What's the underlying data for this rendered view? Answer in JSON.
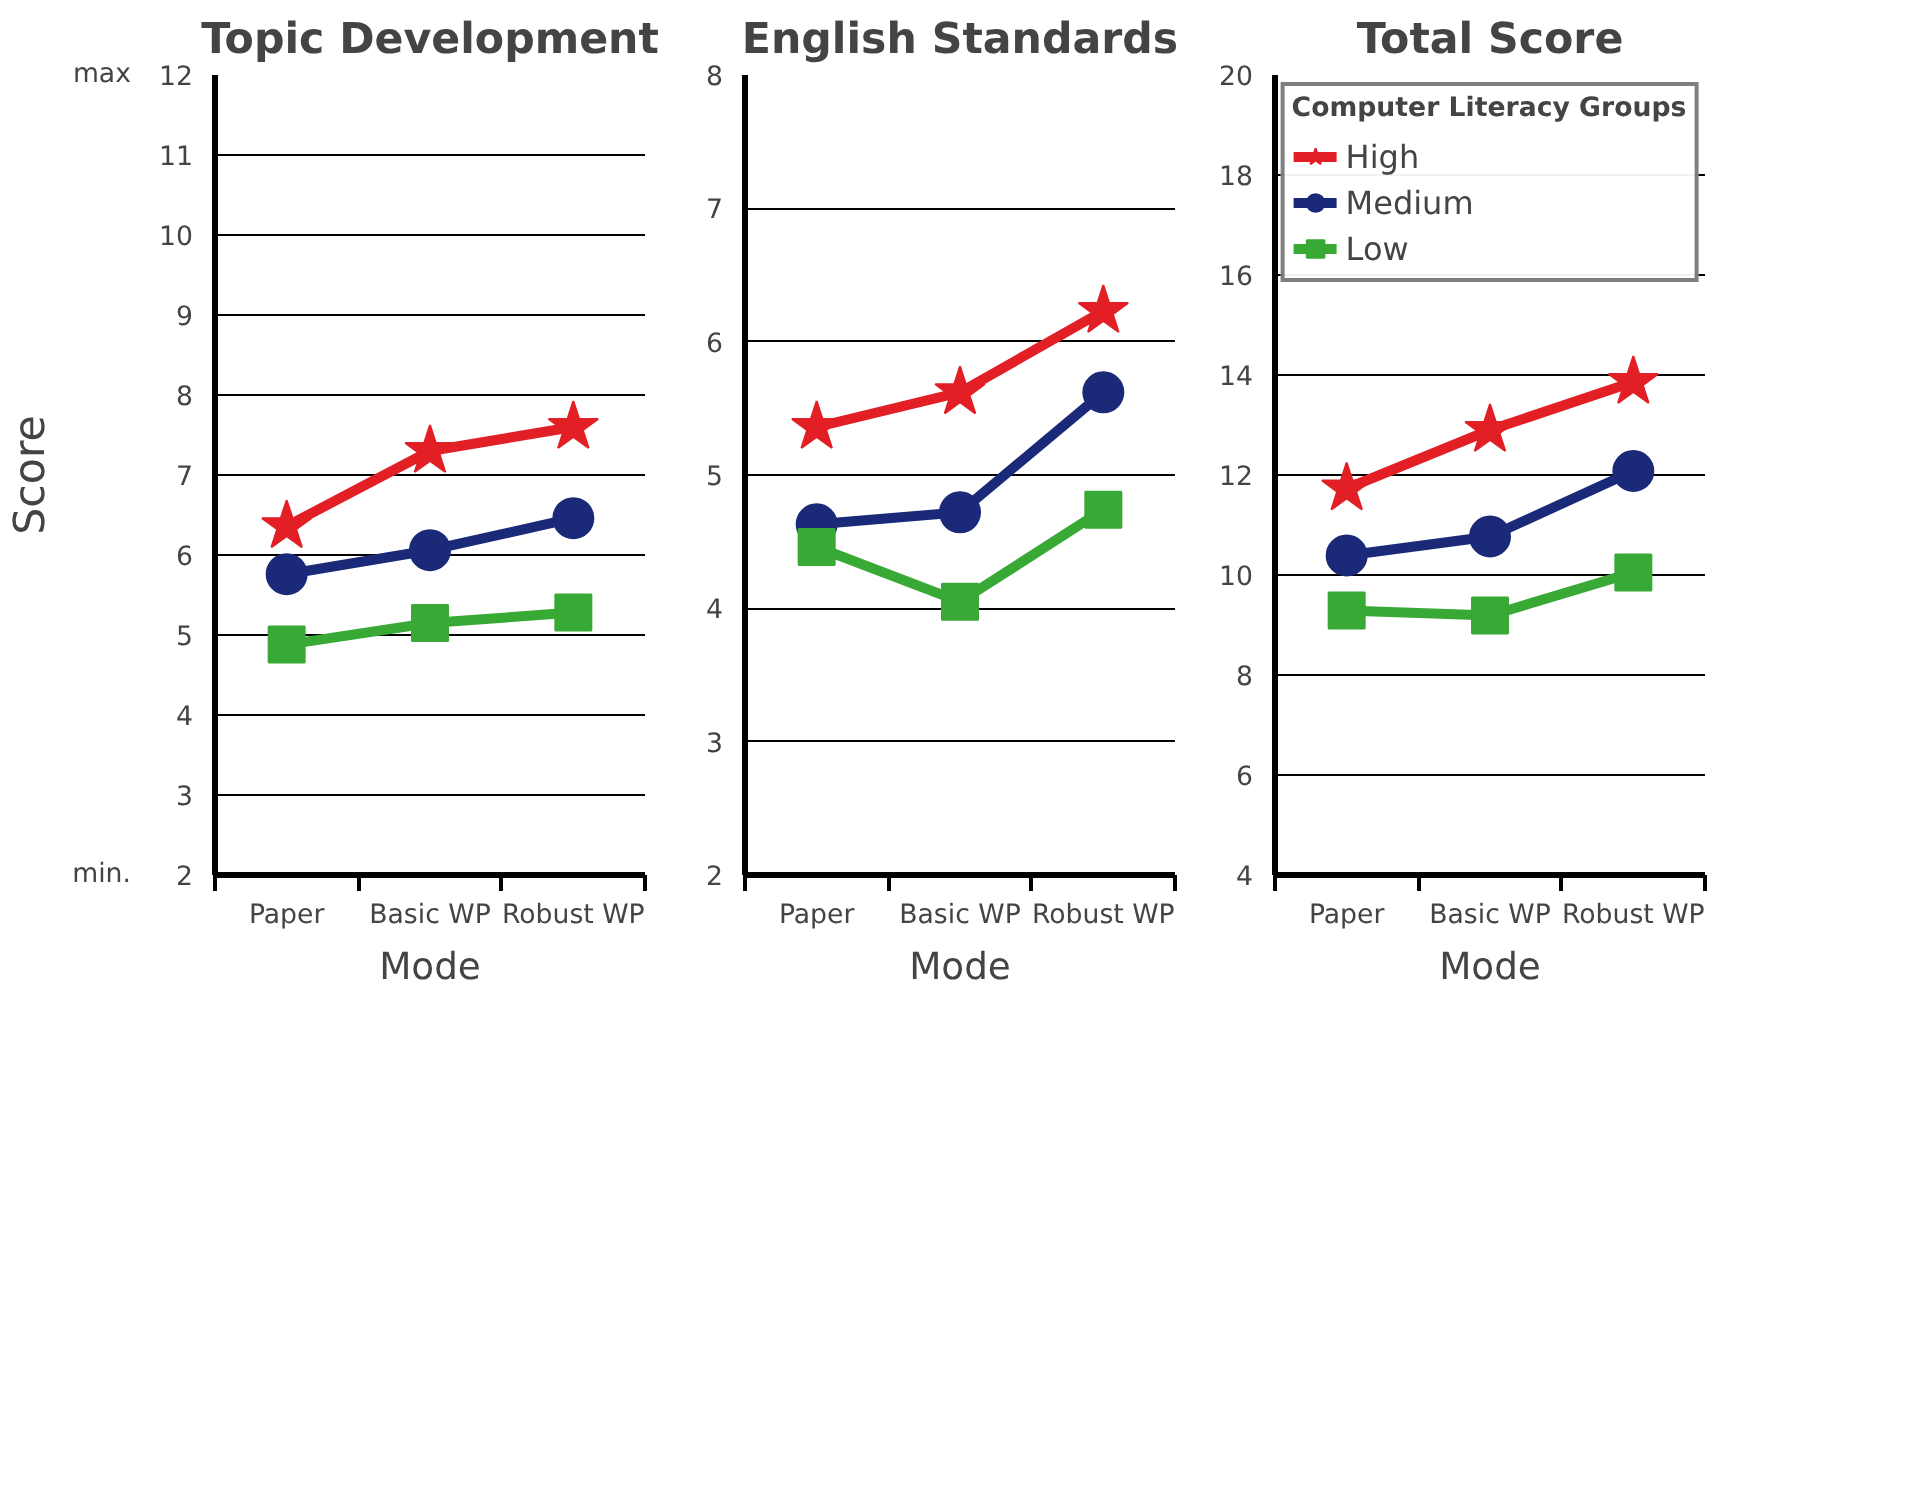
{
  "chart_data": [
    {
      "type": "line",
      "title": "Topic Development",
      "xlabel": "Mode",
      "ylabel": "Score",
      "categories": [
        "Paper",
        "Basic WP",
        "Robust WP"
      ],
      "ylim": [
        2,
        12
      ],
      "yticks": [
        2,
        3,
        4,
        5,
        6,
        7,
        8,
        9,
        10,
        11,
        12
      ],
      "grid": "y",
      "annotations": [
        "max",
        "min."
      ],
      "series": [
        {
          "color": "#e31f26",
          "marker": "star",
          "values": [
            6.36,
            7.3,
            7.6
          ]
        },
        {
          "color": "#1b2a78",
          "marker": "circle",
          "values": [
            5.76,
            6.06,
            6.46
          ]
        },
        {
          "color": "#38a935",
          "marker": "square",
          "values": [
            4.88,
            5.15,
            5.28
          ]
        }
      ]
    },
    {
      "type": "line",
      "title": "English Standards",
      "xlabel": "Mode",
      "categories": [
        "Paper",
        "Basic WP",
        "Robust WP"
      ],
      "ylim": [
        2,
        8
      ],
      "yticks": [
        2,
        3,
        4,
        5,
        6,
        7,
        8
      ],
      "grid": "y",
      "series": [
        {
          "color": "#e31f26",
          "marker": "star",
          "values": [
            5.36,
            5.62,
            6.23
          ]
        },
        {
          "color": "#1b2a78",
          "marker": "circle",
          "values": [
            4.63,
            4.72,
            5.62
          ]
        },
        {
          "color": "#38a935",
          "marker": "square",
          "values": [
            4.46,
            4.05,
            4.74
          ]
        }
      ]
    },
    {
      "type": "line",
      "title": "Total Score",
      "xlabel": "Mode",
      "categories": [
        "Paper",
        "Basic WP",
        "Robust WP"
      ],
      "ylim": [
        4,
        20
      ],
      "yticks": [
        4,
        6,
        8,
        10,
        12,
        14,
        16,
        18,
        20
      ],
      "grid": "y",
      "legend": "top",
      "legend_title": "Computer Literacy Groups",
      "series": [
        {
          "name": "High",
          "color": "#e31f26",
          "marker": "star",
          "values": [
            11.73,
            12.9,
            13.86
          ]
        },
        {
          "name": "Medium",
          "color": "#1b2a78",
          "marker": "circle",
          "values": [
            10.39,
            10.77,
            12.08
          ]
        },
        {
          "name": "Low",
          "color": "#38a935",
          "marker": "square",
          "values": [
            9.29,
            9.19,
            10.05
          ]
        }
      ]
    }
  ]
}
